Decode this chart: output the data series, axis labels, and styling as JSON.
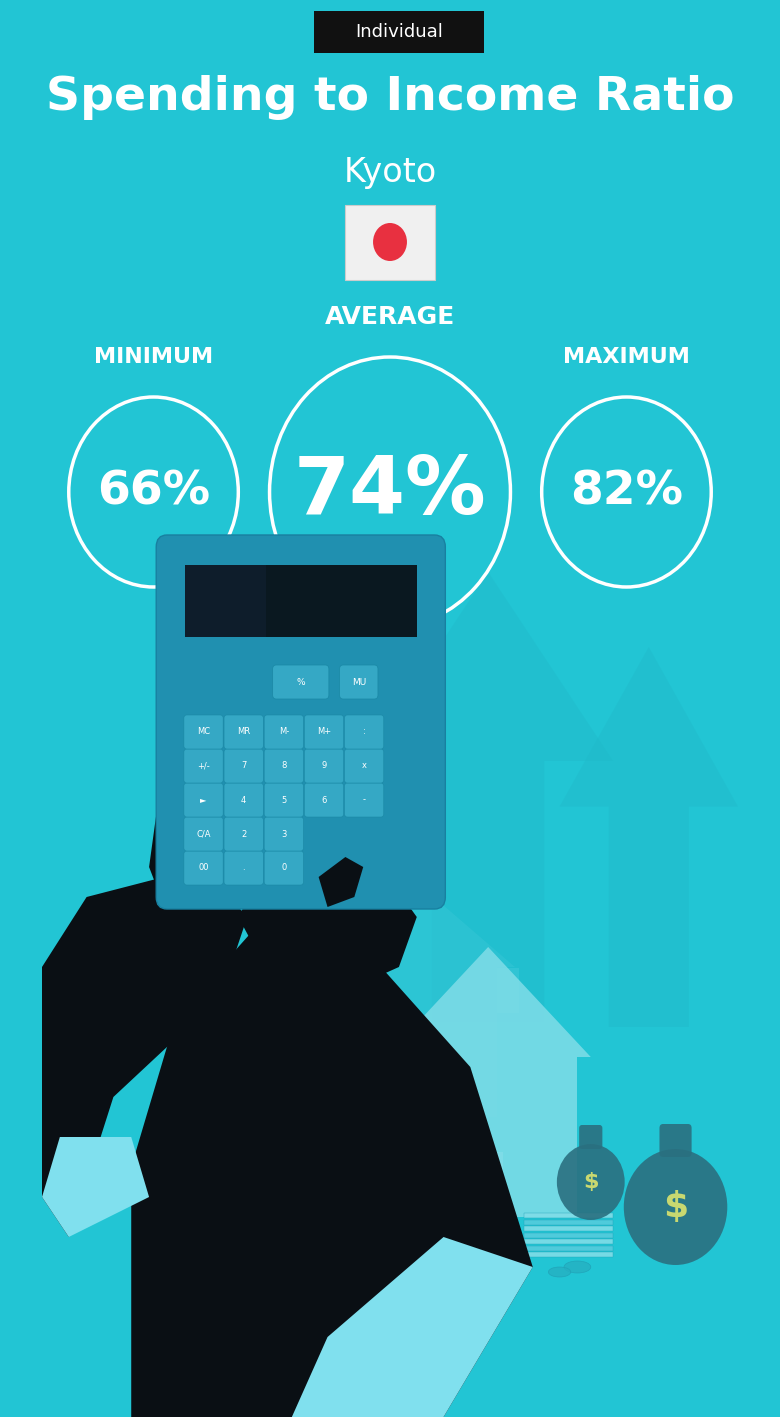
{
  "bg_color": "#22C5D4",
  "title": "Spending to Income Ratio",
  "subtitle": "Kyoto",
  "tag_text": "Individual",
  "tag_bg": "#111111",
  "tag_text_color": "#ffffff",
  "title_color": "#ffffff",
  "subtitle_color": "#ffffff",
  "label_min": "MINIMUM",
  "label_avg": "AVERAGE",
  "label_max": "MAXIMUM",
  "value_min": "66%",
  "value_avg": "74%",
  "value_max": "82%",
  "circle_color": "#ffffff",
  "circle_linewidth": 3,
  "value_color": "#ffffff",
  "label_color": "#ffffff",
  "figsize": [
    7.8,
    14.17
  ],
  "dpi": 100,
  "flag_bg": "#f0f0f0",
  "flag_red": "#e83040",
  "arrow_color": "#1ab8c8",
  "house_color": "#20b5c5",
  "house_light": "#80dde8",
  "bag_color": "#2a7080",
  "dark_hand": "#0a0f14",
  "cuff_color": "#80e0ee",
  "calc_color": "#2090b0",
  "calc_dark": "#0a1820",
  "btn_color": "#30a8c8",
  "money_color": "#30b8d0"
}
